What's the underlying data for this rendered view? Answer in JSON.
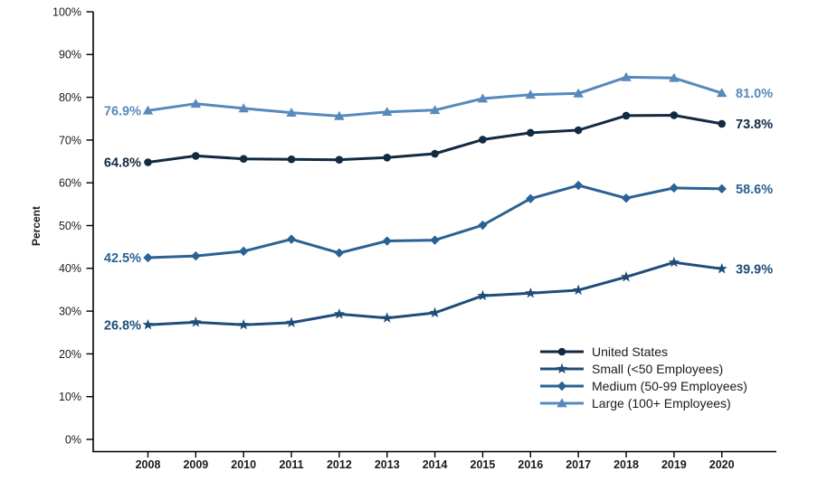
{
  "chart_data": {
    "type": "line",
    "title": "",
    "xlabel": "",
    "ylabel": "Percent",
    "grid": false,
    "legend_position": "inside-bottom-right",
    "ylim": [
      0,
      100
    ],
    "y_ticks": [
      0,
      10,
      20,
      30,
      40,
      50,
      60,
      70,
      80,
      90,
      100
    ],
    "y_tick_labels": [
      "0%",
      "10%",
      "20%",
      "30%",
      "40%",
      "50%",
      "60%",
      "70%",
      "80%",
      "90%",
      "100%"
    ],
    "x": [
      2008,
      2009,
      2010,
      2011,
      2012,
      2013,
      2014,
      2015,
      2016,
      2017,
      2018,
      2019,
      2020
    ],
    "x_tick_labels": [
      "2008",
      "2009",
      "2010",
      "2011",
      "2012",
      "2013",
      "2014",
      "2015",
      "2016",
      "2017",
      "2018",
      "2019",
      "2020"
    ],
    "axis_color": "#000000",
    "tick_label_color": "#1a1a1a",
    "legend_text_color": "#1a1a1a",
    "series": [
      {
        "name": "United States",
        "marker": "circle",
        "color": "#122A42",
        "start_label": "64.8%",
        "end_label": "73.8%",
        "values": [
          64.8,
          66.3,
          65.6,
          65.5,
          65.4,
          65.9,
          66.8,
          70.1,
          71.7,
          72.3,
          75.7,
          75.8,
          73.8
        ]
      },
      {
        "name": "Small (<50 Employees)",
        "marker": "star",
        "color": "#1E4D78",
        "start_label": "26.8%",
        "end_label": "39.9%",
        "values": [
          26.8,
          27.4,
          26.8,
          27.3,
          29.3,
          28.4,
          29.6,
          33.6,
          34.2,
          34.9,
          38.0,
          41.4,
          39.9
        ]
      },
      {
        "name": "Medium (50-99 Employees)",
        "marker": "diamond",
        "color": "#2A6294",
        "start_label": "42.5%",
        "end_label": "58.6%",
        "values": [
          42.5,
          42.9,
          44.0,
          46.8,
          43.6,
          46.4,
          46.6,
          50.1,
          56.3,
          59.4,
          56.4,
          58.8,
          58.6
        ]
      },
      {
        "name": "Large (100+ Employees)",
        "marker": "triangle",
        "color": "#5789BD",
        "start_label": "76.9%",
        "end_label": "81.0%",
        "values": [
          76.9,
          78.5,
          77.4,
          76.4,
          75.6,
          76.6,
          77.0,
          79.7,
          80.6,
          80.9,
          84.7,
          84.5,
          81.0
        ]
      }
    ]
  }
}
